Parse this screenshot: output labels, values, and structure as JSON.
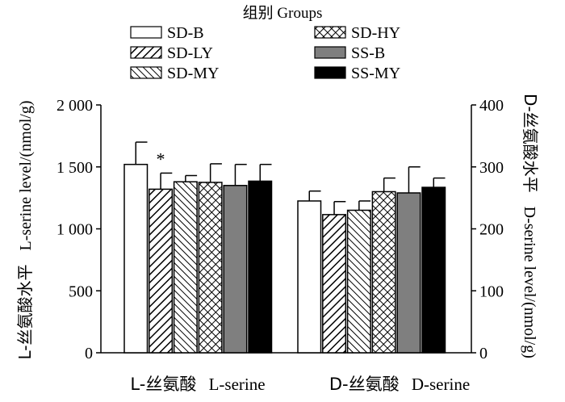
{
  "chart_data": {
    "type": "bar",
    "legend_title": "组别 Groups",
    "legend_placement": "top",
    "groups": [
      {
        "label_cn": "L-丝氨酸",
        "label_en": "L-serine",
        "axis": "left"
      },
      {
        "label_cn": "D-丝氨酸",
        "label_en": "D-serine",
        "axis": "right"
      }
    ],
    "series": [
      {
        "name": "SD-B",
        "pattern": "white",
        "values": [
          1520,
          245
        ],
        "errors": [
          180,
          16
        ]
      },
      {
        "name": "SD-LY",
        "pattern": "hatch-right",
        "values": [
          1320,
          223
        ],
        "errors": [
          130,
          21
        ]
      },
      {
        "name": "SD-MY",
        "pattern": "hatch-left",
        "values": [
          1380,
          230
        ],
        "errors": [
          50,
          15
        ]
      },
      {
        "name": "SD-HY",
        "pattern": "crosshatch",
        "values": [
          1375,
          260
        ],
        "errors": [
          150,
          22
        ]
      },
      {
        "name": "SS-B",
        "pattern": "gray",
        "values": [
          1350,
          258
        ],
        "errors": [
          170,
          42
        ]
      },
      {
        "name": "SS-MY",
        "pattern": "black",
        "values": [
          1385,
          267
        ],
        "errors": [
          135,
          15
        ]
      }
    ],
    "significance": [
      {
        "group": 0,
        "series": 1,
        "mark": "*"
      }
    ],
    "left_axis": {
      "label_cn": "L-丝氨酸水平",
      "label_en": "L-serine level/(nmol/g)",
      "ylim": [
        0,
        2000
      ],
      "ticks": [
        0,
        500,
        1000,
        1500,
        2000
      ],
      "tick_labels": [
        "0",
        "500",
        "1 000",
        "1 500",
        "2 000"
      ]
    },
    "right_axis": {
      "label_cn": "D-丝氨酸水平",
      "label_en": "D-serine level/(nmol/g)",
      "ylim": [
        0,
        400
      ],
      "ticks": [
        0,
        100,
        200,
        300,
        400
      ],
      "tick_labels": [
        "0",
        "100",
        "200",
        "300",
        "400"
      ]
    },
    "grid": false
  }
}
